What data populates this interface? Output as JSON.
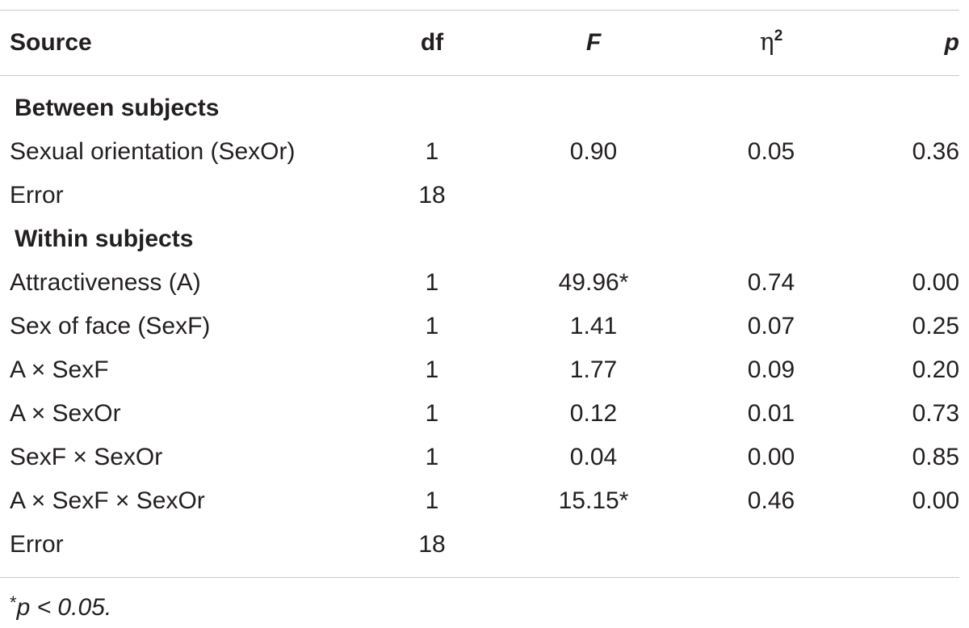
{
  "table": {
    "headers": {
      "source": "Source",
      "df": "df",
      "f": "F",
      "eta_symbol": "η",
      "eta_sup": "2",
      "p": "p"
    },
    "sections": [
      {
        "title": "Between subjects",
        "rows": [
          {
            "source": "Sexual orientation (SexOr)",
            "df": "1",
            "f": "0.90",
            "eta": "0.05",
            "p": "0.36"
          },
          {
            "source": "Error",
            "df": "18",
            "f": "",
            "eta": "",
            "p": ""
          }
        ]
      },
      {
        "title": "Within subjects",
        "rows": [
          {
            "source": "Attractiveness (A)",
            "df": "1",
            "f": "49.96",
            "eta": "0.74",
            "p": "0.00"
          },
          {
            "source": "Sex of face (SexF)",
            "df": "1",
            "f": "1.41",
            "eta": "0.07",
            "p": "0.25"
          },
          {
            "source": "A × SexF",
            "df": "1",
            "f": "1.77",
            "eta": "0.09",
            "p": "0.20"
          },
          {
            "source": "A × SexOr",
            "df": "1",
            "f": "0.12",
            "eta": "0.01",
            "p": "0.73"
          },
          {
            "source": "SexF × SexOr",
            "df": "1",
            "f": "0.04",
            "eta": "0.00",
            "p": "0.85"
          },
          {
            "source": "A × SexF × SexOr",
            "df": "1",
            "f": "15.15",
            "eta": "0.46",
            "p": "0.00"
          },
          {
            "source": "Error",
            "df": "18",
            "f": "",
            "eta": "",
            "p": ""
          }
        ]
      }
    ],
    "significance_marker": "*",
    "footnote": {
      "marker": "*",
      "text": "p < 0.05."
    }
  }
}
